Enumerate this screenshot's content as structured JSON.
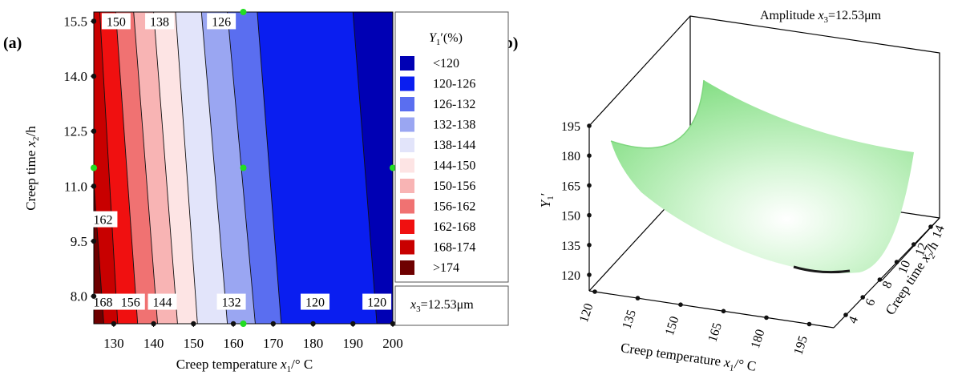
{
  "figure": {
    "panel_a_label": "(a)",
    "panel_b_label": "(b)"
  },
  "chart_data": [
    {
      "type": "contour",
      "panel": "(a)",
      "xlabel": "Creep temperature x1/° C",
      "xlabel_parts": {
        "pre": "Creep temperature ",
        "var": "x",
        "sub": "1",
        "post": "/° C"
      },
      "ylabel": "Creep time x2/h",
      "ylabel_parts": {
        "pre": "Creep time ",
        "var": "x",
        "sub": "2",
        "post": "/h"
      },
      "xlim": [
        125,
        200
      ],
      "ylim": [
        7.25,
        15.75
      ],
      "xticks": [
        "130",
        "140",
        "150",
        "160",
        "170",
        "180",
        "190",
        "200"
      ],
      "xtick_values": [
        130,
        140,
        150,
        160,
        170,
        180,
        190,
        200
      ],
      "yticks": [
        "8.0",
        "9.5",
        "11.0",
        "12.5",
        "14.0",
        "15.5"
      ],
      "ytick_values": [
        8.0,
        9.5,
        11.0,
        12.5,
        14.0,
        15.5
      ],
      "contour_levels": [
        120,
        126,
        132,
        138,
        144,
        150,
        156,
        162,
        168,
        174
      ],
      "contour_line_x_at_bottom": [
        196,
        172,
        165.5,
        158.5,
        151,
        146,
        141,
        136,
        131,
        127.5
      ],
      "contour_line_x_at_top": [
        190,
        166,
        158.5,
        152,
        145.5,
        140,
        135,
        130.5,
        126.5,
        122
      ],
      "contour_labels": [
        {
          "text": "150",
          "x": 130.6,
          "y": 15.5
        },
        {
          "text": "138",
          "x": 141.5,
          "y": 15.5
        },
        {
          "text": "126",
          "x": 157,
          "y": 15.5
        },
        {
          "text": "162",
          "x": 127.3,
          "y": 10.1
        },
        {
          "text": "168",
          "x": 127.3,
          "y": 7.85
        },
        {
          "text": "156",
          "x": 134.2,
          "y": 7.85
        },
        {
          "text": "144",
          "x": 142.2,
          "y": 7.85
        },
        {
          "text": "132",
          "x": 159.5,
          "y": 7.85
        },
        {
          "text": "120",
          "x": 180.5,
          "y": 7.85
        },
        {
          "text": "120",
          "x": 196,
          "y": 7.85
        }
      ],
      "design_points": [
        {
          "x": 162.5,
          "y": 15.75,
          "color": "green"
        },
        {
          "x": 125,
          "y": 11.5,
          "color": "green"
        },
        {
          "x": 162.5,
          "y": 11.5,
          "color": "green"
        },
        {
          "x": 200,
          "y": 11.5,
          "color": "green"
        },
        {
          "x": 162.5,
          "y": 7.25,
          "color": "green"
        }
      ],
      "legend": {
        "title_var": "Y",
        "title_sub": "1",
        "title_rest": "′(%)",
        "entries": [
          {
            "label": "<120",
            "color": "#0000b4"
          },
          {
            "label": "120-126",
            "color": "#0a1ef0"
          },
          {
            "label": "126-132",
            "color": "#5a6ef0"
          },
          {
            "label": "132-138",
            "color": "#9aa6f2"
          },
          {
            "label": "138-144",
            "color": "#e2e4fa"
          },
          {
            "label": "144-150",
            "color": "#fde4e4"
          },
          {
            "label": "150-156",
            "color": "#f8b4b4"
          },
          {
            "label": "156-162",
            "color": "#f07272"
          },
          {
            "label": "162-168",
            "color": "#f01010"
          },
          {
            "label": "168-174",
            "color": "#c80000"
          },
          {
            "label": ">174",
            "color": "#6e0000"
          }
        ]
      },
      "annotation": {
        "var": "x",
        "sub": "3",
        "rest": "=12.53μm"
      }
    },
    {
      "type": "surface3d",
      "panel": "(b)",
      "title": "Amplitude x3=12.53μm",
      "title_parts": {
        "pre": "Amplitude ",
        "var": "x",
        "sub": "3",
        "post": "=12.53μm"
      },
      "xlabel": "Creep temperature x1/° C",
      "xlabel_parts": {
        "pre": "Creep temperature ",
        "var": "x",
        "sub": "1",
        "post": "/° C"
      },
      "ylabel": "Creep time x2/h",
      "ylabel_parts": {
        "pre": "Creep time ",
        "var": "x",
        "sub": "2",
        "post": "/h"
      },
      "zlabel": "Y1′",
      "zlabel_parts": {
        "var": "Y",
        "sub": "1",
        "post": "′"
      },
      "xticks": [
        "120",
        "135",
        "150",
        "165",
        "180",
        "195"
      ],
      "yticks": [
        "4",
        "6",
        "8",
        "10",
        "12",
        "14"
      ],
      "zticks": [
        "120",
        "135",
        "150",
        "165",
        "180",
        "195"
      ],
      "surface_color": "#9ee89e"
    }
  ]
}
